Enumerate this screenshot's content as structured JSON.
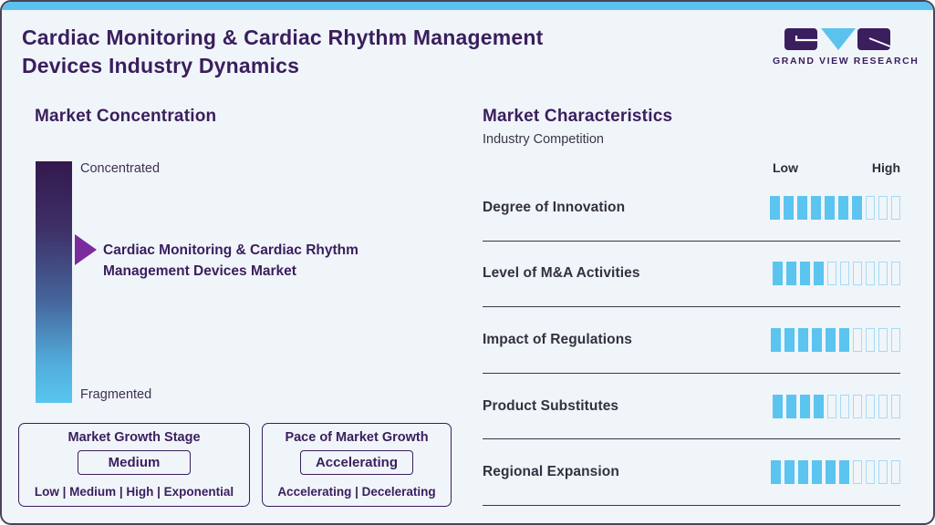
{
  "header": {
    "title_line1": "Cardiac Monitoring & Cardiac Rhythm Management",
    "title_line2": "Devices Industry Dynamics",
    "logo_text": "GRAND VIEW RESEARCH"
  },
  "market_concentration": {
    "heading": "Market Concentration",
    "top_label": "Concentrated",
    "bottom_label": "Fragmented",
    "market_line1": "Cardiac Monitoring & Cardiac Rhythm",
    "market_line2": "Management Devices Market",
    "arrow_position_pct_from_top": 36
  },
  "growth_stage": {
    "title": "Market Growth Stage",
    "value": "Medium",
    "options": "Low | Medium | High | Exponential"
  },
  "growth_pace": {
    "title": "Pace of Market Growth",
    "value": "Accelerating",
    "options": "Accelerating | Decelerating"
  },
  "market_characteristics": {
    "heading": "Market Characteristics",
    "subtitle": "Industry Competition",
    "scale_low": "Low",
    "scale_high": "High",
    "rows": [
      {
        "label": "Degree of Innovation",
        "filled": 7,
        "total": 10
      },
      {
        "label": "Level of M&A Activities",
        "filled": 4,
        "total": 10
      },
      {
        "label": "Impact of Regulations",
        "filled": 6,
        "total": 10
      },
      {
        "label": "Product Substitutes",
        "filled": 4,
        "total": 10
      },
      {
        "label": "Regional Expansion",
        "filled": 6,
        "total": 10
      }
    ]
  },
  "chart_data": {
    "type": "bar",
    "title": "Market Characteristics — Industry Competition",
    "categories": [
      "Degree of Innovation",
      "Level of M&A Activities",
      "Impact of Regulations",
      "Product Substitutes",
      "Regional Expansion"
    ],
    "values": [
      7,
      4,
      6,
      4,
      6
    ],
    "value_scale": {
      "min": 0,
      "max": 10,
      "min_label": "Low",
      "max_label": "High"
    },
    "annotations": {
      "market_concentration_axis": [
        "Concentrated",
        "Fragmented"
      ],
      "market_concentration_marker": "Cardiac Monitoring & Cardiac Rhythm Management Devices Market at ~36% from Concentrated end",
      "market_growth_stage": "Medium",
      "market_growth_stage_options": [
        "Low",
        "Medium",
        "High",
        "Exponential"
      ],
      "pace_of_market_growth": "Accelerating",
      "pace_of_market_growth_options": [
        "Accelerating",
        "Decelerating"
      ]
    },
    "legend_position": "none",
    "grid": false
  },
  "colors": {
    "brand_purple": "#3a1e5d",
    "accent_blue": "#5bc2ee",
    "arrow_purple": "#7c2b9d",
    "tick_filled": "#5bc4ef",
    "tick_outline": "#a5daf3",
    "text_dark": "#33313e",
    "divider": "#3a3844",
    "card_bg": "#f0f5fa"
  }
}
